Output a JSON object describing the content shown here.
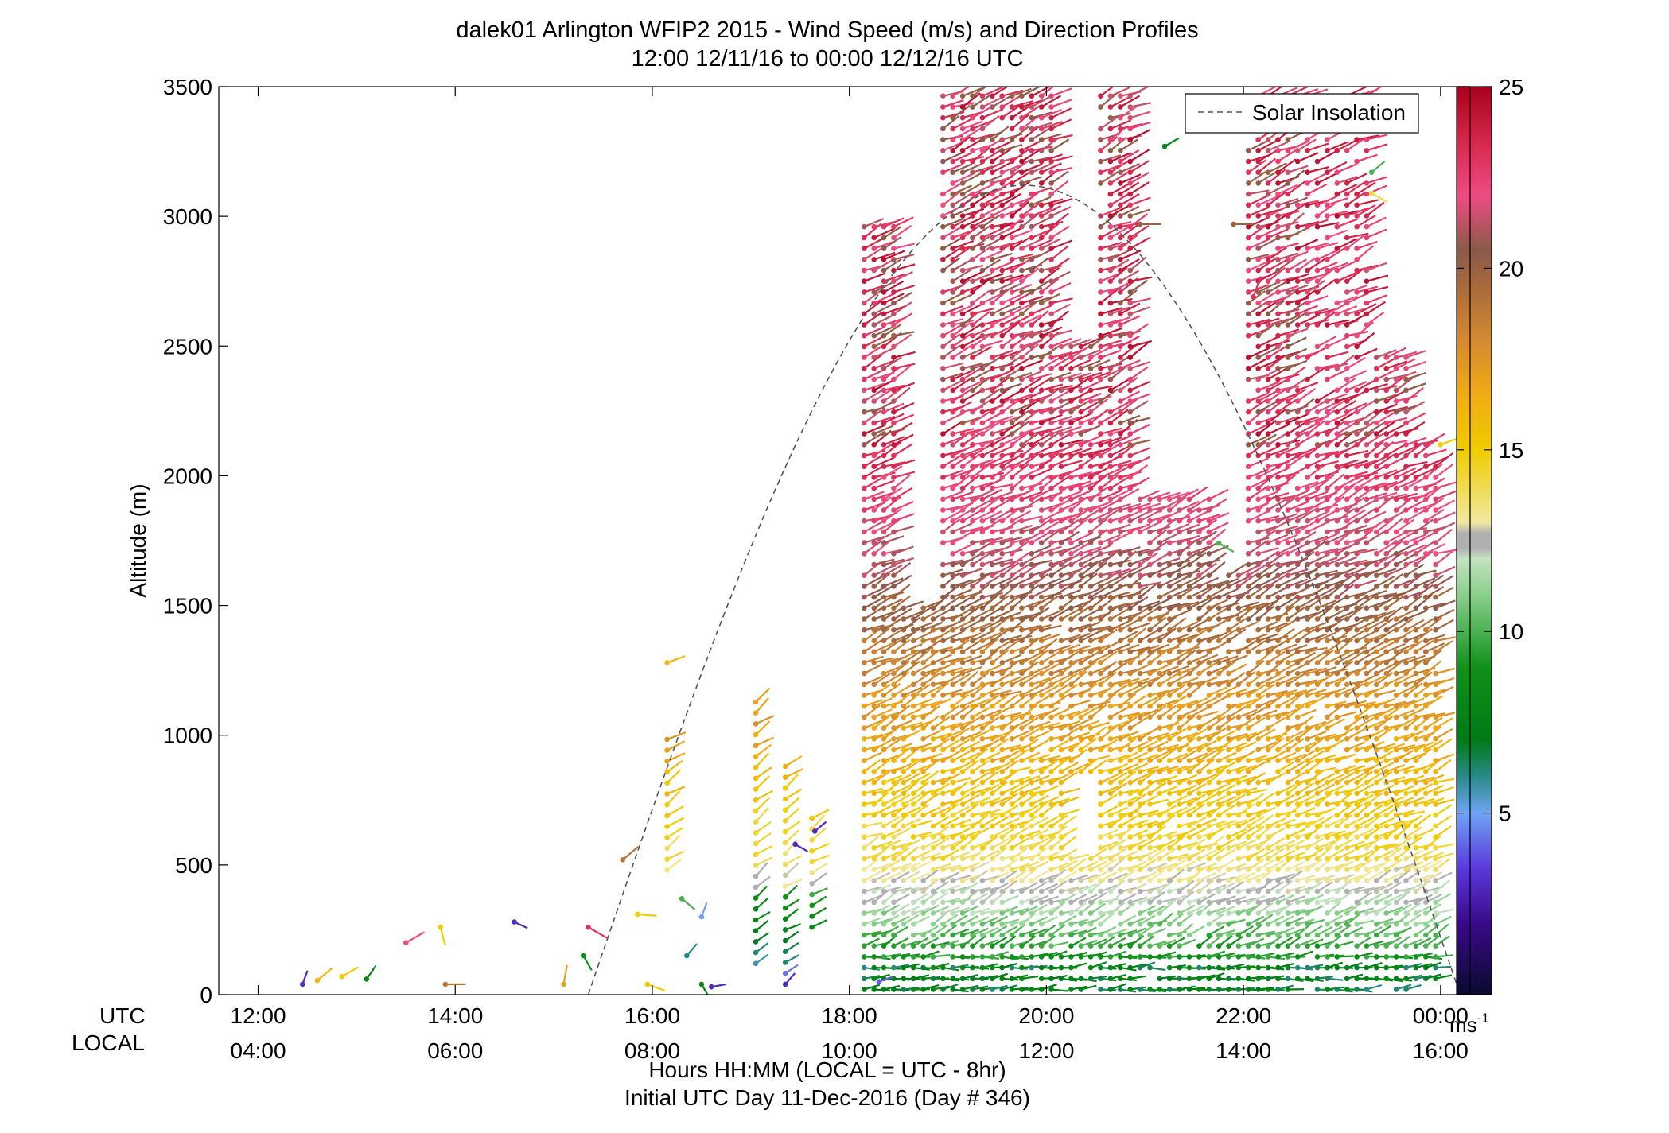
{
  "chart_data": {
    "type": "wind-barb-profile",
    "title": [
      "dalek01 Arlington WFIP2 2015 - Wind Speed (m/s) and Direction Profiles",
      "12:00 12/11/16 to 00:00 12/12/16  UTC"
    ],
    "ylabel": "Altitude (m)",
    "xlabel": [
      "Hours HH:MM  (LOCAL = UTC - 8hr)",
      "Initial UTC Day 11-Dec-2016 (Day # 346)"
    ],
    "x_row_labels": [
      "UTC",
      "LOCAL"
    ],
    "x_ticks_utc": [
      "12:00",
      "14:00",
      "16:00",
      "18:00",
      "20:00",
      "22:00",
      "00:00"
    ],
    "x_ticks_local": [
      "04:00",
      "06:00",
      "08:00",
      "10:00",
      "12:00",
      "14:00",
      "16:00"
    ],
    "x_tick_hours": [
      12,
      14,
      16,
      18,
      20,
      22,
      24
    ],
    "xlim": [
      11.6,
      24.3
    ],
    "y_ticks": [
      "0",
      "500",
      "1000",
      "1500",
      "2000",
      "2500",
      "3000",
      "3500"
    ],
    "ylim": [
      0,
      3500
    ],
    "colorbar": {
      "range": [
        0,
        25
      ],
      "ticks": [
        "5",
        "10",
        "15",
        "20",
        "25"
      ],
      "unit": "ms",
      "unit_sup": "-1",
      "stops": [
        {
          "v": 0,
          "c": "#0a0a30"
        },
        {
          "v": 2,
          "c": "#3a0a8a"
        },
        {
          "v": 3.5,
          "c": "#5a3adc"
        },
        {
          "v": 5,
          "c": "#6fa4f4"
        },
        {
          "v": 6,
          "c": "#2a8a8a"
        },
        {
          "v": 7,
          "c": "#007a14"
        },
        {
          "v": 9,
          "c": "#10901a"
        },
        {
          "v": 11,
          "c": "#8acf8a"
        },
        {
          "v": 12,
          "c": "#c4e3c0"
        },
        {
          "v": 12.3,
          "c": "#b0b0b0"
        },
        {
          "v": 12.7,
          "c": "#b0b0b0"
        },
        {
          "v": 13,
          "c": "#f2e8a0"
        },
        {
          "v": 15,
          "c": "#f0cc00"
        },
        {
          "v": 16.5,
          "c": "#f0ac14"
        },
        {
          "v": 18,
          "c": "#d48a30"
        },
        {
          "v": 19.5,
          "c": "#a86a3c"
        },
        {
          "v": 20.5,
          "c": "#8a5a4a"
        },
        {
          "v": 22,
          "c": "#ee4c82"
        },
        {
          "v": 23.5,
          "c": "#d4284c"
        },
        {
          "v": 25,
          "c": "#a8001c"
        }
      ]
    },
    "legend": {
      "label": "Solar Insolation",
      "position": "top-right"
    },
    "solar_insolation_curve": {
      "start_hour": 15.35,
      "end_hour": 24.2,
      "peak_altitude_m": 3120
    },
    "barb_grid": {
      "columns_hour_start": 18.15,
      "columns_hour_end": 23.95,
      "column_spacing_hours": 0.1,
      "altitude_step_m": 42
    },
    "scattered_barbs": [
      {
        "x": 12.45,
        "alt": 40,
        "speed": 3,
        "dir": 200
      },
      {
        "x": 12.6,
        "alt": 55,
        "speed": 16,
        "dir": 230
      },
      {
        "x": 12.85,
        "alt": 70,
        "speed": 15,
        "dir": 240
      },
      {
        "x": 13.1,
        "alt": 60,
        "speed": 8,
        "dir": 215
      },
      {
        "x": 13.5,
        "alt": 200,
        "speed": 22,
        "dir": 240
      },
      {
        "x": 13.9,
        "alt": 40,
        "speed": 19,
        "dir": 270
      },
      {
        "x": 13.85,
        "alt": 260,
        "speed": 15,
        "dir": 345
      },
      {
        "x": 14.6,
        "alt": 280,
        "speed": 3,
        "dir": 295
      },
      {
        "x": 15.1,
        "alt": 40,
        "speed": 17,
        "dir": 190
      },
      {
        "x": 15.35,
        "alt": 260,
        "speed": 23,
        "dir": 300
      },
      {
        "x": 15.3,
        "alt": 150,
        "speed": 9,
        "dir": 330
      },
      {
        "x": 15.7,
        "alt": 520,
        "speed": 19,
        "dir": 230
      },
      {
        "x": 15.85,
        "alt": 310,
        "speed": 15,
        "dir": 275
      },
      {
        "x": 15.95,
        "alt": 40,
        "speed": 15,
        "dir": 290
      },
      {
        "x": 16.15,
        "alt": 1280,
        "speed": 16,
        "dir": 250
      },
      {
        "x": 16.3,
        "alt": 370,
        "speed": 10,
        "dir": 310
      },
      {
        "x": 16.35,
        "alt": 150,
        "speed": 6,
        "dir": 220
      },
      {
        "x": 16.5,
        "alt": 300,
        "speed": 5,
        "dir": 200
      },
      {
        "x": 16.5,
        "alt": 40,
        "speed": 8,
        "dir": 330
      },
      {
        "x": 16.6,
        "alt": 30,
        "speed": 3,
        "dir": 260
      },
      {
        "x": 17.45,
        "alt": 580,
        "speed": 3,
        "dir": 300
      },
      {
        "x": 17.65,
        "alt": 630,
        "speed": 3,
        "dir": 230
      },
      {
        "x": 18.3,
        "alt": 50,
        "speed": 4,
        "dir": 250
      },
      {
        "x": 20.95,
        "alt": 2970,
        "speed": 20,
        "dir": 270
      },
      {
        "x": 21.2,
        "alt": 3270,
        "speed": 8,
        "dir": 240
      },
      {
        "x": 21.9,
        "alt": 2970,
        "speed": 20,
        "dir": 270
      },
      {
        "x": 22.1,
        "alt": 2690,
        "speed": 23,
        "dir": 200
      },
      {
        "x": 21.75,
        "alt": 1740,
        "speed": 10,
        "dir": 300
      },
      {
        "x": 24.0,
        "alt": 2120,
        "speed": 15,
        "dir": 250
      },
      {
        "x": 23.3,
        "alt": 3170,
        "speed": 10,
        "dir": 230
      },
      {
        "x": 23.3,
        "alt": 3090,
        "speed": 14,
        "dir": 300
      }
    ]
  }
}
